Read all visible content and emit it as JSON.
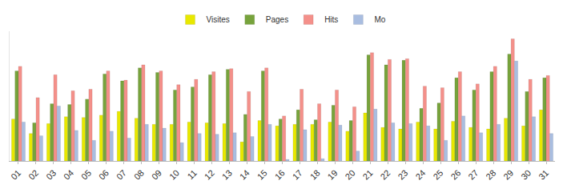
{
  "chart_data": {
    "type": "bar",
    "categories": [
      "01",
      "02",
      "03",
      "04",
      "05",
      "06",
      "07",
      "08",
      "09",
      "10",
      "11",
      "12",
      "13",
      "14",
      "15",
      "16",
      "17",
      "18",
      "19",
      "20",
      "21",
      "22",
      "23",
      "24",
      "25",
      "26",
      "27",
      "28",
      "29",
      "30",
      "31"
    ],
    "series": [
      {
        "name": "Visites",
        "color": "#e8e800",
        "values": [
          55,
          36,
          49,
          58,
          57,
          60,
          65,
          56,
          48,
          48,
          51,
          50,
          49,
          25,
          53,
          46,
          48,
          48,
          51,
          39,
          63,
          44,
          42,
          51,
          42,
          52,
          44,
          42,
          56,
          46,
          67
        ]
      },
      {
        "name": "Pages",
        "color": "#77a33c",
        "values": [
          118,
          50,
          75,
          74,
          81,
          114,
          105,
          122,
          116,
          93,
          97,
          113,
          120,
          61,
          118,
          55,
          67,
          54,
          73,
          53,
          139,
          126,
          132,
          69,
          76,
          109,
          93,
          117,
          140,
          91,
          109
        ]
      },
      {
        "name": "Hits",
        "color": "#f4908a",
        "values": [
          124,
          83,
          113,
          92,
          94,
          118,
          106,
          126,
          118,
          100,
          107,
          117,
          121,
          91,
          122,
          59,
          94,
          75,
          93,
          71,
          142,
          133,
          134,
          98,
          96,
          117,
          101,
          124,
          160,
          107,
          112
        ]
      },
      {
        "name": "Mo",
        "color": "#a9bde0",
        "values": [
          51,
          33,
          72,
          40,
          27,
          39,
          30,
          48,
          43,
          24,
          36,
          35,
          37,
          32,
          48,
          2,
          41,
          3,
          47,
          13,
          68,
          50,
          49,
          46,
          27,
          59,
          37,
          48,
          131,
          58,
          36
        ]
      }
    ],
    "ylim": [
      0,
      170
    ],
    "legend": "top",
    "grid": false,
    "tick_labels": "x"
  }
}
